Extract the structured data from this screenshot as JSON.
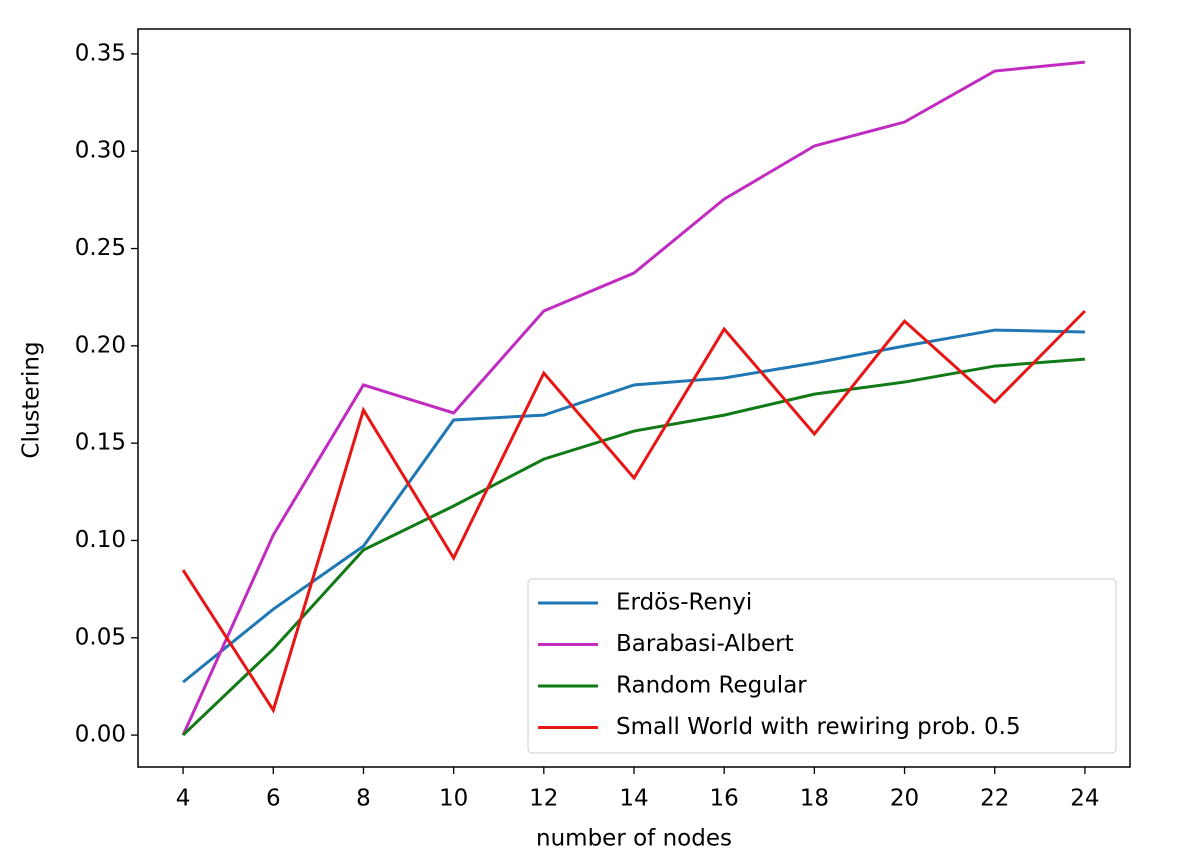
{
  "chart_data": {
    "type": "line",
    "x_label": "number of nodes",
    "y_label": "Clustering",
    "x": [
      4,
      6,
      8,
      10,
      12,
      14,
      16,
      18,
      20,
      22,
      24
    ],
    "series": [
      {
        "name": "Erdös-Renyi",
        "color": "#1f77b4",
        "values": [
          0.0272,
          0.0647,
          0.0971,
          0.1619,
          0.1644,
          0.1799,
          0.1835,
          0.1912,
          0.1999,
          0.2081,
          0.2071
        ]
      },
      {
        "name": "Barabasi-Albert",
        "color": "#c02bc0",
        "values": [
          0.0,
          0.1028,
          0.1799,
          0.1655,
          0.2179,
          0.2374,
          0.2754,
          0.3027,
          0.315,
          0.3412,
          0.3458
        ]
      },
      {
        "name": "Random Regular",
        "color": "#117a17",
        "values": [
          0.0,
          0.0442,
          0.0951,
          0.1177,
          0.1418,
          0.1562,
          0.1644,
          0.1752,
          0.1814,
          0.1896,
          0.1932
        ]
      },
      {
        "name": "Small World with rewiring prob. 0.5",
        "color": "#e81515",
        "values": [
          0.0848,
          0.0128,
          0.167,
          0.091,
          0.186,
          0.1321,
          0.2086,
          0.1547,
          0.2127,
          0.1711,
          0.2179
        ]
      }
    ],
    "xlim": [
      3,
      25
    ],
    "ylim": [
      -0.0164,
      0.3628
    ],
    "xticks": [
      4,
      6,
      8,
      10,
      12,
      14,
      16,
      18,
      20,
      22,
      24
    ],
    "yticks": [
      {
        "value": 0,
        "label": "0.00"
      },
      {
        "value": 0.05,
        "label": "0.05"
      },
      {
        "value": 0.1,
        "label": "0.10"
      },
      {
        "value": 0.15,
        "label": "0.15"
      },
      {
        "value": 0.2,
        "label": "0.20"
      },
      {
        "value": 0.25,
        "label": "0.25"
      },
      {
        "value": 0.3,
        "label": "0.30"
      },
      {
        "value": 0.35,
        "label": "0.35"
      }
    ],
    "legend": "lower right"
  }
}
